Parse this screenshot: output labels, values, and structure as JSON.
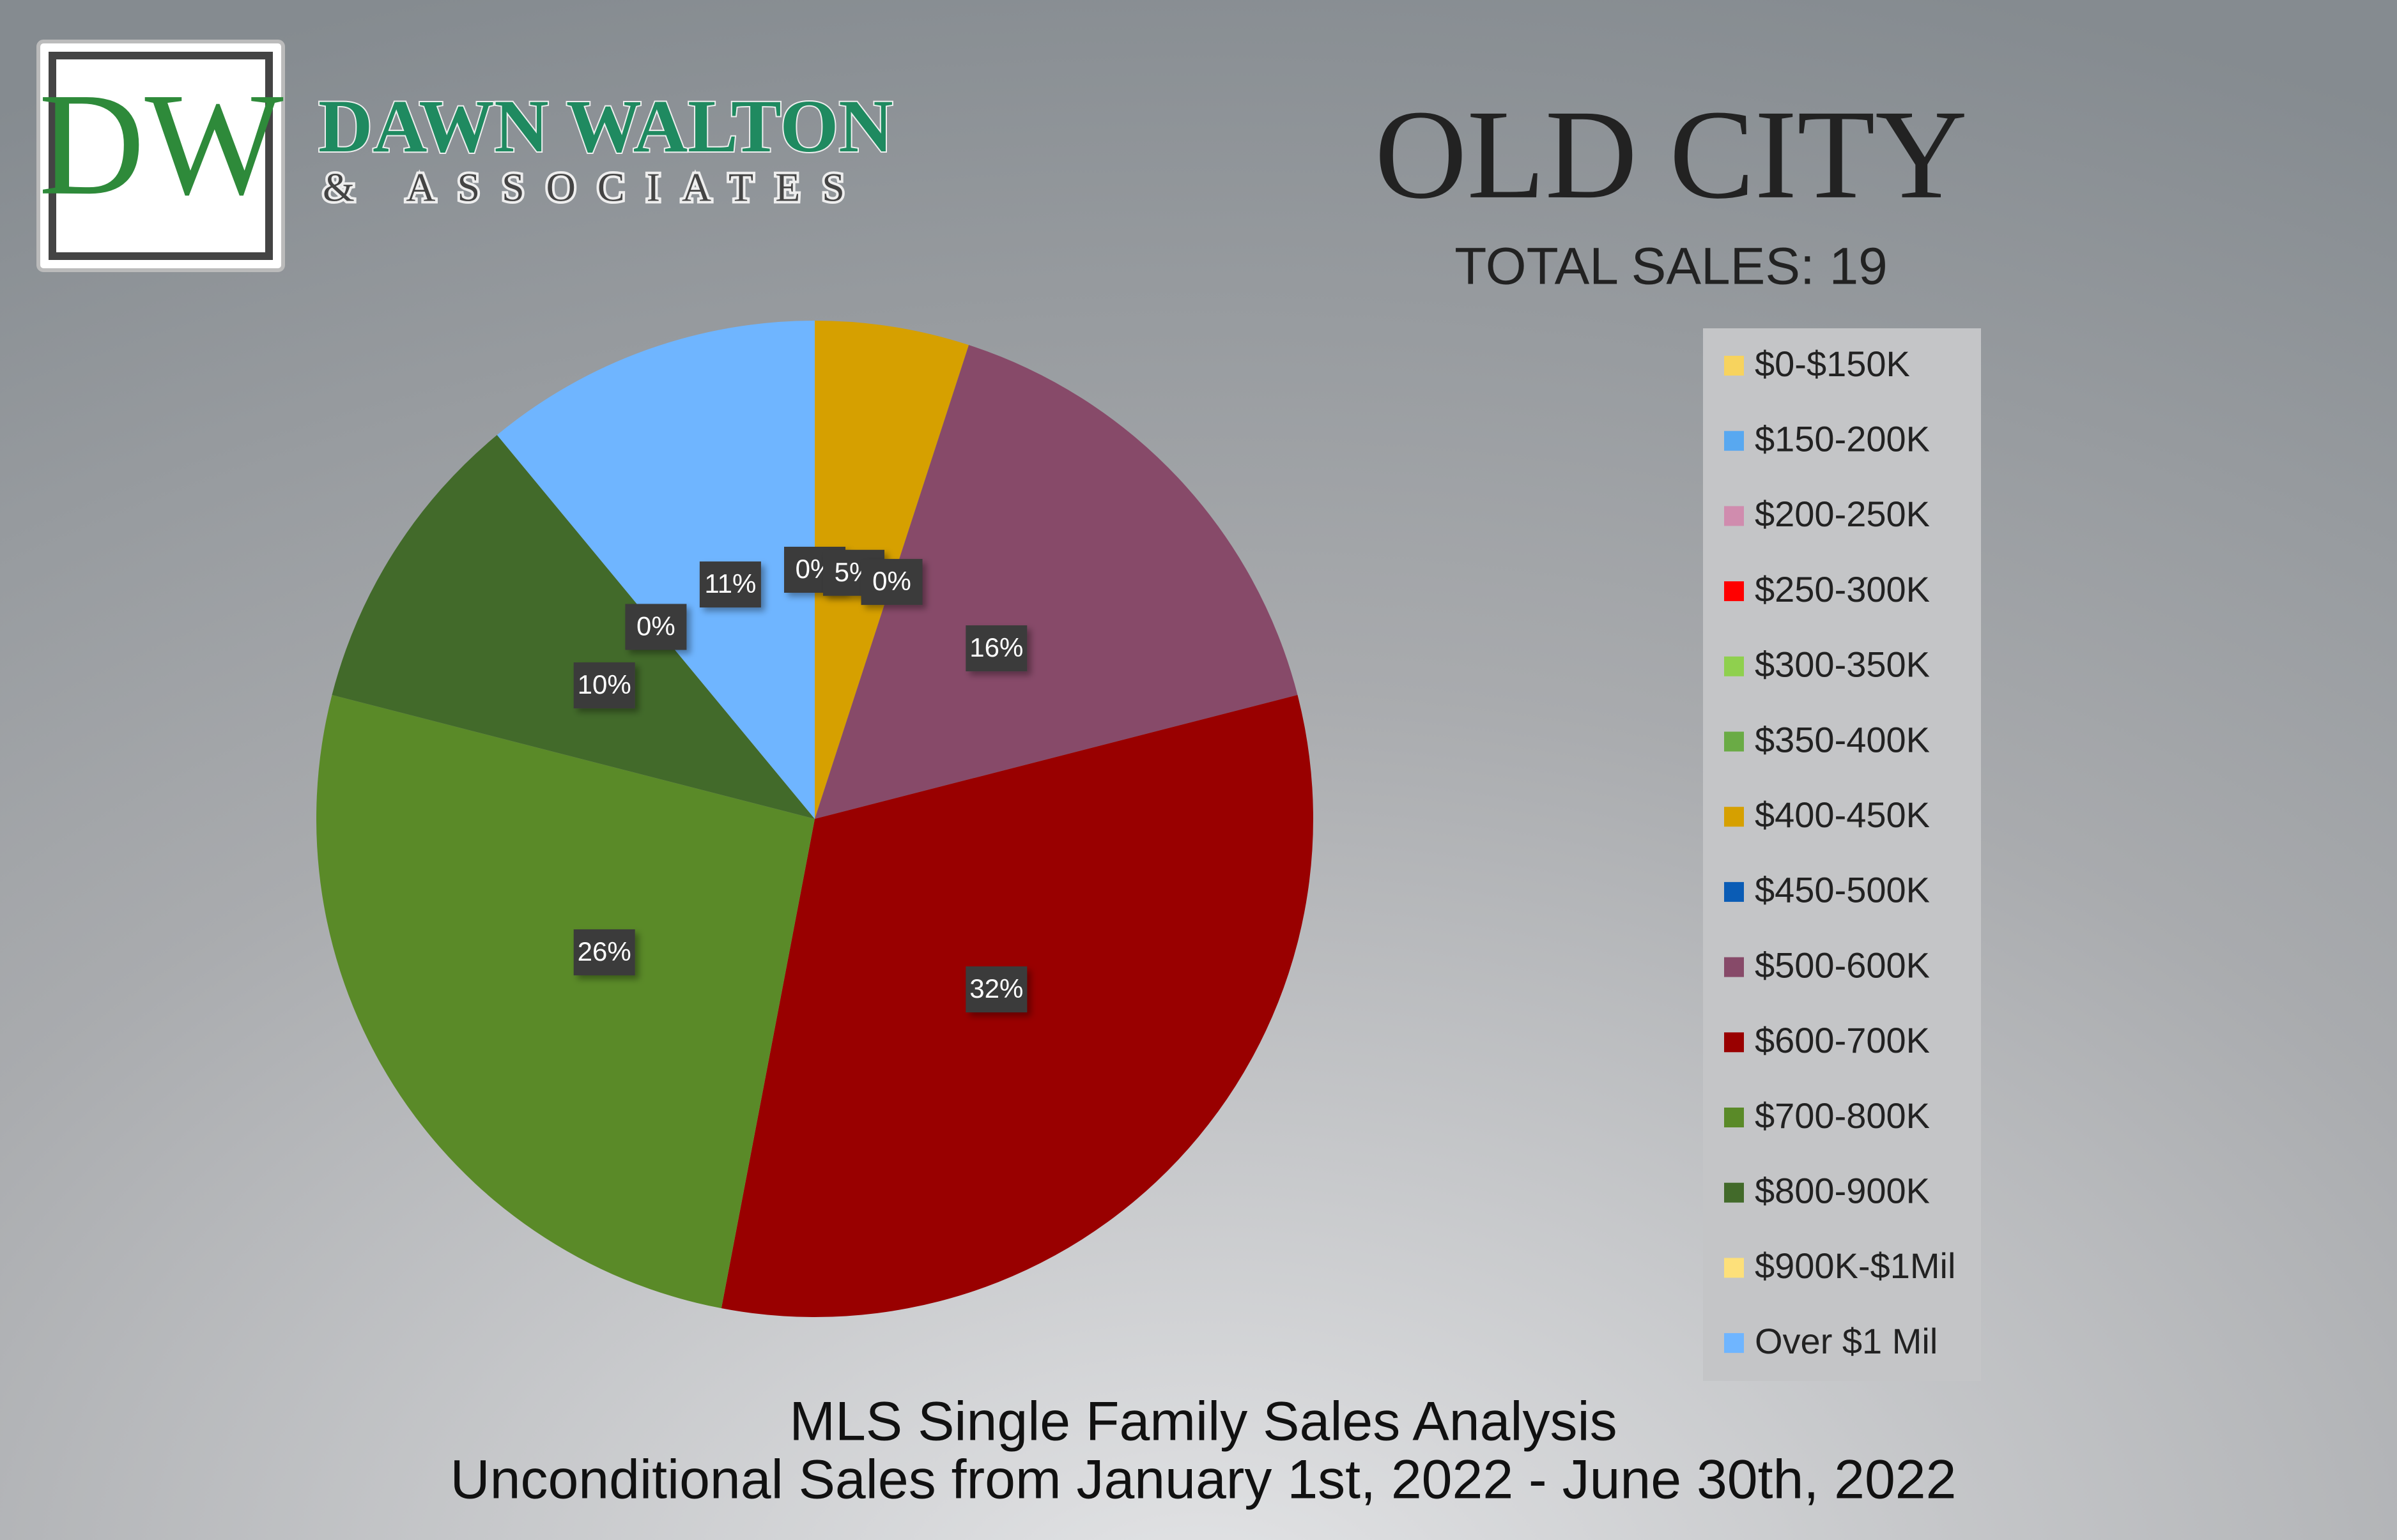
{
  "logo": {
    "initials": "DW",
    "name": "DAWN WALTON",
    "tagline": "& ASSOCIATES"
  },
  "chart_data": {
    "type": "pie",
    "title": "OLD CITY",
    "subtitle": "TOTAL SALES: 19",
    "footer": [
      "MLS Single Family Sales Analysis",
      "Unconditional Sales from January 1st, 2022 - June 30th, 2022"
    ],
    "categories": [
      "$0-$150K",
      "$150-200K",
      "$200-250K",
      "$250-300K",
      "$300-350K",
      "$350-400K",
      "$400-450K",
      "$450-500K",
      "$500-600K",
      "$600-700K",
      "$700-800K",
      "$800-900K",
      "$900K-$1Mil",
      "Over $1 Mil"
    ],
    "values": [
      0,
      0,
      0,
      0,
      0,
      0,
      5,
      0,
      16,
      32,
      26,
      10,
      0,
      11
    ],
    "value_labels": [
      null,
      null,
      null,
      null,
      null,
      "0%",
      "5%",
      "0%",
      "16%",
      "32%",
      "26%",
      "10%",
      "0%",
      "11%"
    ],
    "colors": [
      "#f7d35e",
      "#58a8f0",
      "#d08cae",
      "#ff0000",
      "#8fd04e",
      "#6aab45",
      "#d6a000",
      "#0a5cb5",
      "#874a69",
      "#990000",
      "#5a8a28",
      "#426a2a",
      "#fde07a",
      "#6fb5ff"
    ],
    "legend": "right"
  }
}
